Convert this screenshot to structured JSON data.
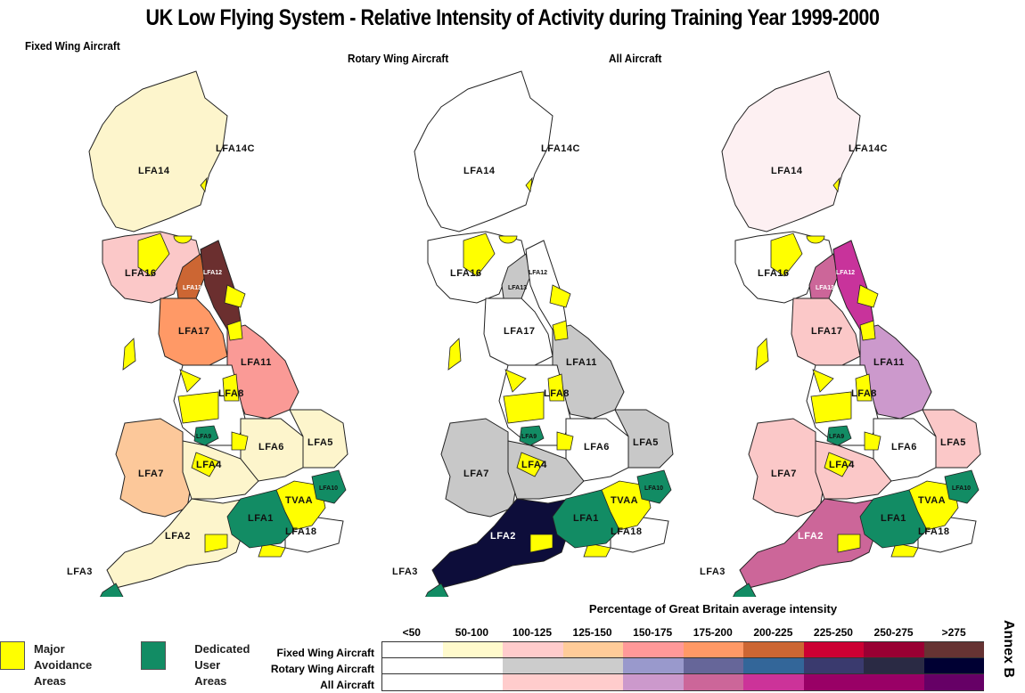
{
  "title": "UK Low Flying System - Relative Intensity of Activity during Training Year 1999-2000",
  "panels": [
    {
      "title": "Fixed Wing Aircraft",
      "key": "fixed"
    },
    {
      "title": "Rotary Wing Aircraft",
      "key": "rotary"
    },
    {
      "title": "All Aircraft",
      "key": "all"
    }
  ],
  "area_labels": {
    "lfa14": "LFA14",
    "lfa14c": "LFA14C",
    "lfa16": "LFA16",
    "lfa12": "LFA12",
    "lfa13": "LFA13",
    "lfa17": "LFA17",
    "lfa11": "LFA11",
    "lfa8": "LFA8",
    "lfa9": "LFA9",
    "lfa7": "LFA7",
    "lfa4": "LFA4",
    "lfa6": "LFA6",
    "lfa5": "LFA5",
    "lfa10": "LFA10",
    "tvaa": "TVAA",
    "lfa1": "LFA1",
    "lfa2": "LFA2",
    "lfa18": "LFA18",
    "lfa3": "LFA3"
  },
  "region_colors": {
    "fixed": {
      "lfa14": "#fdf5cc",
      "lfa16": "#fbc8c8",
      "lfa12": "#6b2f2f",
      "lfa13": "#cc6633",
      "lfa17": "#ff9966",
      "lfa11": "#fa9a96",
      "lfa8": "#ffffff",
      "lfa7": "#fcc89a",
      "lfa4": "#fdf5cc",
      "lfa6": "#fdf5cc",
      "lfa5": "#fdf5cc",
      "lfa2": "#fdf5cc",
      "lfa18": "#ffffff"
    },
    "rotary": {
      "lfa14": "#ffffff",
      "lfa16": "#ffffff",
      "lfa12": "#ffffff",
      "lfa13": "#c8c8c8",
      "lfa17": "#ffffff",
      "lfa11": "#c8c8c8",
      "lfa8": "#ffffff",
      "lfa7": "#c8c8c8",
      "lfa4": "#c8c8c8",
      "lfa6": "#ffffff",
      "lfa5": "#c8c8c8",
      "lfa2": "#0d0d3a",
      "lfa18": "#ffffff"
    },
    "all": {
      "lfa14": "#fdf0f2",
      "lfa16": "#ffffff",
      "lfa12": "#c8339b",
      "lfa13": "#cc6699",
      "lfa17": "#fbc8c8",
      "lfa11": "#cc99cc",
      "lfa8": "#ffffff",
      "lfa7": "#fbc8c8",
      "lfa4": "#fbc8c8",
      "lfa6": "#ffffff",
      "lfa5": "#fbc8c8",
      "lfa2": "#cc6699",
      "lfa18": "#ffffff"
    }
  },
  "special_colors": {
    "avoidance": "#ffff00",
    "dedicated": "#128c64"
  },
  "legend": {
    "avoidance_label": [
      "Major",
      "Avoidance",
      "Areas"
    ],
    "dedicated_label": [
      "Dedicated",
      "User",
      "Areas"
    ],
    "scale_title": "Percentage of Great Britain average intensity",
    "ranges": [
      "<50",
      "50-100",
      "100-125",
      "125-150",
      "150-175",
      "175-200",
      "200-225",
      "225-250",
      "250-275",
      ">275"
    ],
    "rows": [
      {
        "label": "Fixed Wing Aircraft",
        "colors": [
          "#ffffff",
          "#fffacc",
          "#ffcccc",
          "#ffcc99",
          "#ff9999",
          "#ff9966",
          "#cc6633",
          "#cc0033",
          "#990033",
          "#663333"
        ]
      },
      {
        "label": "Rotary Wing Aircraft",
        "colors": [
          "#ffffff",
          "#ffffff",
          "#cccccc",
          "#cccccc",
          "#9999cc",
          "#666699",
          "#336699",
          "#3a3a6e",
          "#2a2a44",
          "#000033"
        ]
      },
      {
        "label": "All Aircraft",
        "colors": [
          "#ffffff",
          "#ffffff",
          "#ffcccc",
          "#ffcccc",
          "#cc99cc",
          "#cc6699",
          "#cc3399",
          "#990066",
          "#990066",
          "#660066"
        ]
      }
    ],
    "annex": "Annex B"
  }
}
